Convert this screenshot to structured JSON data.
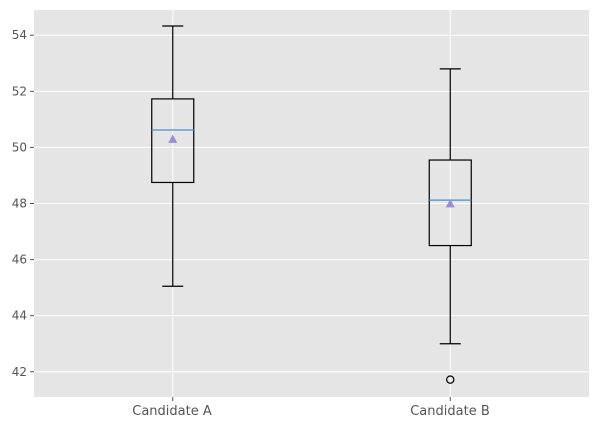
{
  "chart_data": {
    "type": "boxplot",
    "title": "",
    "xlabel": "",
    "ylabel": "",
    "ylim": [
      41.1,
      54.9
    ],
    "y_ticks": [
      42,
      44,
      46,
      48,
      50,
      52,
      54
    ],
    "y_tick_labels": [
      "42",
      "44",
      "46",
      "48",
      "50",
      "52",
      "54"
    ],
    "categories": [
      "Candidate A",
      "Candidate B"
    ],
    "grid": true,
    "colors": {
      "plot_background": "#e5e5e5",
      "grid": "#ffffff",
      "box": "#000000",
      "median": "#4c8fcf",
      "mean_marker": "#988ed5"
    },
    "boxes": [
      {
        "category": "Candidate A",
        "whisker_low": 45.05,
        "q1": 48.75,
        "median": 50.62,
        "q3": 51.73,
        "whisker_high": 54.33,
        "mean": 50.3,
        "outliers": []
      },
      {
        "category": "Candidate B",
        "whisker_low": 43.0,
        "q1": 46.5,
        "median": 48.12,
        "q3": 49.55,
        "whisker_high": 52.8,
        "mean": 48.0,
        "outliers": [
          41.72
        ]
      }
    ]
  }
}
